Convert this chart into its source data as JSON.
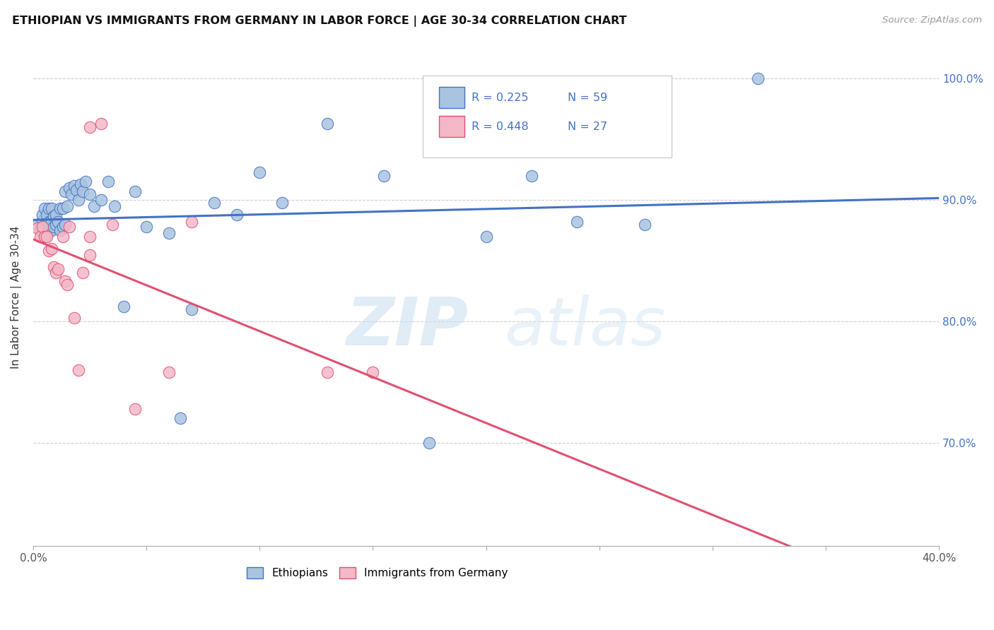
{
  "title": "ETHIOPIAN VS IMMIGRANTS FROM GERMANY IN LABOR FORCE | AGE 30-34 CORRELATION CHART",
  "source": "Source: ZipAtlas.com",
  "ylabel": "In Labor Force | Age 30-34",
  "xlim": [
    0.0,
    0.4
  ],
  "ylim": [
    0.615,
    1.025
  ],
  "blue_R": 0.225,
  "blue_N": 59,
  "pink_R": 0.448,
  "pink_N": 27,
  "blue_color": "#a8c4e0",
  "pink_color": "#f4b8c8",
  "blue_line_color": "#4472C4",
  "pink_line_color": "#e05070",
  "watermark_zip": "ZIP",
  "watermark_atlas": "atlas",
  "blue_scatter_x": [
    0.002,
    0.003,
    0.004,
    0.004,
    0.005,
    0.005,
    0.005,
    0.006,
    0.006,
    0.006,
    0.007,
    0.007,
    0.007,
    0.008,
    0.008,
    0.008,
    0.009,
    0.009,
    0.01,
    0.01,
    0.011,
    0.012,
    0.012,
    0.013,
    0.013,
    0.014,
    0.014,
    0.015,
    0.016,
    0.017,
    0.018,
    0.019,
    0.02,
    0.021,
    0.022,
    0.023,
    0.025,
    0.027,
    0.03,
    0.033,
    0.036,
    0.04,
    0.045,
    0.05,
    0.06,
    0.065,
    0.07,
    0.08,
    0.09,
    0.1,
    0.11,
    0.13,
    0.155,
    0.175,
    0.2,
    0.22,
    0.24,
    0.27,
    0.32
  ],
  "blue_scatter_y": [
    0.88,
    0.875,
    0.883,
    0.888,
    0.87,
    0.878,
    0.893,
    0.872,
    0.88,
    0.888,
    0.875,
    0.882,
    0.893,
    0.875,
    0.883,
    0.893,
    0.878,
    0.887,
    0.88,
    0.888,
    0.882,
    0.875,
    0.893,
    0.878,
    0.893,
    0.88,
    0.907,
    0.895,
    0.91,
    0.905,
    0.912,
    0.908,
    0.9,
    0.913,
    0.907,
    0.915,
    0.905,
    0.895,
    0.9,
    0.915,
    0.895,
    0.812,
    0.907,
    0.878,
    0.873,
    0.72,
    0.81,
    0.898,
    0.888,
    0.923,
    0.898,
    0.963,
    0.92,
    0.7,
    0.87,
    0.92,
    0.882,
    0.88,
    1.0
  ],
  "pink_scatter_x": [
    0.002,
    0.003,
    0.004,
    0.005,
    0.006,
    0.007,
    0.008,
    0.009,
    0.01,
    0.011,
    0.013,
    0.014,
    0.015,
    0.016,
    0.018,
    0.02,
    0.022,
    0.025,
    0.025,
    0.025,
    0.03,
    0.035,
    0.045,
    0.06,
    0.07,
    0.13,
    0.15
  ],
  "pink_scatter_y": [
    0.877,
    0.87,
    0.878,
    0.87,
    0.87,
    0.858,
    0.86,
    0.845,
    0.84,
    0.843,
    0.87,
    0.833,
    0.83,
    0.878,
    0.803,
    0.76,
    0.84,
    0.855,
    0.87,
    0.96,
    0.963,
    0.88,
    0.728,
    0.758,
    0.882,
    0.758,
    0.758
  ]
}
